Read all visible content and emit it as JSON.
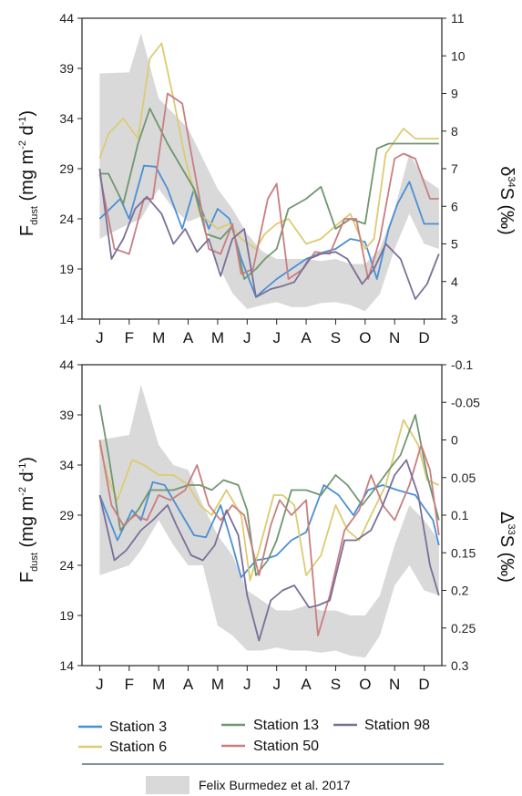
{
  "chart_data": [
    {
      "type": "line",
      "months": [
        "J",
        "F",
        "M",
        "A",
        "M",
        "J",
        "J",
        "A",
        "S",
        "O",
        "N",
        "D"
      ],
      "ylabel_left": {
        "main": "F",
        "sub": "dust",
        "rest": " (mg m",
        "sup1": "-2",
        "mid": " d",
        "sup2": "-1",
        "end": ")"
      },
      "ylabel_right": {
        "pre": "δ",
        "sup": "34",
        "main": "S (‰)"
      },
      "y_left_lim": [
        14,
        44
      ],
      "y_left_ticks": [
        "14",
        "19",
        "24",
        "29",
        "34",
        "39",
        "44"
      ],
      "y_right_lim": [
        3,
        11
      ],
      "y_right_ticks": [
        "3",
        "4",
        "5",
        "6",
        "7",
        "8",
        "9",
        "10",
        "11"
      ],
      "band": {
        "name": "Felix Burmedez et al. 2017",
        "x": [
          0,
          1,
          1.4,
          2,
          2.5,
          3,
          3.5,
          4,
          4.5,
          5,
          5.5,
          6,
          6.5,
          7,
          7.5,
          8,
          8.5,
          9,
          9.5,
          10,
          10.5,
          11,
          11.5
        ],
        "upper": [
          38.5,
          38.6,
          42.5,
          36,
          34.5,
          33,
          30,
          27,
          25,
          22.5,
          20.8,
          20,
          20,
          20,
          19.8,
          20,
          19.5,
          19.5,
          21,
          25,
          30.5,
          28,
          27
        ],
        "lower": [
          22,
          23.5,
          24,
          27,
          25,
          23.7,
          24.3,
          19.5,
          16.6,
          15,
          15.4,
          15.7,
          15.2,
          15.2,
          15.6,
          15.7,
          15.4,
          14.8,
          16.5,
          21,
          24.5,
          21.5,
          21
        ]
      },
      "series": [
        {
          "name": "Station 3",
          "color": "#4a8fd6",
          "x": [
            0,
            0.7,
            1,
            1.5,
            1.9,
            2.3,
            2.8,
            3.2,
            3.7,
            4,
            4.4,
            4.8,
            5.3,
            5.6,
            6,
            6.5,
            7,
            7.5,
            8,
            8.5,
            9,
            9.4,
            9.8,
            10.1,
            10.5,
            11,
            11.5
          ],
          "y": [
            24,
            26,
            24,
            29.3,
            29.2,
            27,
            23,
            27,
            23,
            25,
            24,
            20,
            16.2,
            17,
            18,
            19,
            20,
            20.6,
            21,
            22,
            21.7,
            18,
            23,
            25.5,
            27.7,
            23.5,
            23.5
          ]
        },
        {
          "name": "Station 6",
          "color": "#dccb72",
          "x": [
            0,
            0.3,
            0.8,
            1.3,
            1.7,
            2.1,
            2.5,
            2.9,
            3.4,
            4,
            4.4,
            4.8,
            5.3,
            5.6,
            6,
            6.4,
            7,
            7.5,
            8,
            8.5,
            9,
            9.3,
            9.7,
            10.3,
            10.7,
            11,
            11.5
          ],
          "y": [
            30,
            32.5,
            34,
            32,
            40,
            41.5,
            36,
            30,
            24.5,
            23,
            23.5,
            22,
            21,
            22.5,
            23.5,
            24,
            21.5,
            22,
            23.3,
            24.5,
            21,
            22,
            30.5,
            33,
            32,
            32,
            32
          ]
        },
        {
          "name": "Station 13",
          "color": "#6f9670",
          "x": [
            0,
            0.3,
            0.8,
            1.3,
            1.7,
            2.3,
            2.7,
            3.2,
            3.6,
            4.1,
            4.5,
            4.9,
            5.3,
            5.6,
            6,
            6.4,
            7,
            7.5,
            8,
            8.5,
            9,
            9.4,
            9.8,
            10.4,
            10.8,
            11.2,
            11.5
          ],
          "y": [
            28.5,
            28.5,
            25.5,
            31.5,
            35,
            31.5,
            29.5,
            27,
            22.5,
            22,
            23.3,
            18,
            19,
            20,
            21,
            25,
            26,
            27.2,
            23,
            24,
            23.5,
            31,
            31.5,
            31.5,
            31.5,
            31.5,
            31.5
          ]
        },
        {
          "name": "Station 50",
          "color": "#c97e80",
          "x": [
            0,
            0.5,
            1,
            1.5,
            1.8,
            2.3,
            2.8,
            3.2,
            3.7,
            4.1,
            4.5,
            4.8,
            5.2,
            5.7,
            6,
            6.4,
            6.9,
            7.3,
            7.8,
            8.3,
            8.7,
            9.1,
            9.5,
            10,
            10.3,
            10.7,
            11.2,
            11.5
          ],
          "y": [
            28.5,
            21,
            20.5,
            26,
            26,
            36.5,
            35.5,
            29,
            21,
            20.5,
            23.5,
            18.5,
            19,
            26,
            27.5,
            18,
            19,
            20.7,
            20.5,
            24,
            24,
            18,
            22,
            30,
            30.5,
            30,
            26,
            26
          ]
        },
        {
          "name": "Station 98",
          "color": "#7a6f97",
          "x": [
            0,
            0.4,
            0.8,
            1.2,
            1.6,
            2.1,
            2.5,
            2.9,
            3.3,
            3.7,
            4.1,
            4.5,
            4.9,
            5.3,
            5.8,
            6.2,
            6.6,
            7.1,
            7.5,
            8,
            8.4,
            8.9,
            9.3,
            9.7,
            10.2,
            10.7,
            11.1,
            11.5
          ],
          "y": [
            29,
            20,
            22,
            25,
            26.2,
            24.5,
            21.5,
            23,
            20.7,
            22,
            18.3,
            22,
            23,
            16.2,
            17,
            17.3,
            17.7,
            20,
            20.5,
            20.7,
            20,
            17.5,
            19,
            21.5,
            20,
            16,
            17.5,
            20.5
          ]
        }
      ]
    },
    {
      "type": "line",
      "months": [
        "J",
        "F",
        "M",
        "A",
        "M",
        "J",
        "J",
        "A",
        "S",
        "O",
        "N",
        "D"
      ],
      "ylabel_left": {
        "main": "F",
        "sub": "dust",
        "rest": " (mg m",
        "sup1": "-2",
        "mid": " d",
        "sup2": "-1",
        "end": ")"
      },
      "ylabel_right": {
        "pre": "Δ",
        "sup": "33",
        "main": "S (‰)"
      },
      "y_left_lim": [
        14,
        44
      ],
      "y_left_ticks": [
        "14",
        "19",
        "24",
        "29",
        "34",
        "39",
        "44"
      ],
      "y_right_lim": [
        0.3,
        -0.1
      ],
      "y_right_ticks": [
        "0.3",
        "0.25",
        "0.2",
        "0.15",
        "0.1",
        "0.05",
        "0",
        "-0.05",
        "-0.1"
      ],
      "band": {
        "name": "Felix Burmedez et al. 2017",
        "x": [
          0,
          1,
          1.4,
          2,
          2.5,
          3,
          3.5,
          4,
          4.5,
          5,
          5.5,
          6,
          6.5,
          7,
          7.5,
          8,
          8.5,
          9,
          9.5,
          10,
          10.5,
          11,
          11.5
        ],
        "upper": [
          36.5,
          37,
          42,
          36,
          34,
          33.5,
          30,
          27,
          25,
          21.5,
          20.5,
          19.5,
          19.5,
          20,
          19.5,
          19.5,
          19,
          19,
          21,
          26,
          30,
          28.5,
          26.5
        ],
        "lower": [
          23,
          24,
          25.5,
          28.5,
          26,
          24,
          24,
          18,
          17,
          15.5,
          15.5,
          15.8,
          15.5,
          15.5,
          15.3,
          15.5,
          15,
          14.8,
          17,
          22,
          24,
          21.5,
          21
        ]
      },
      "series": [
        {
          "name": "Station 3",
          "color": "#4a8fd6",
          "x": [
            0,
            0.6,
            1.1,
            1.4,
            1.8,
            2.2,
            2.7,
            3.2,
            3.6,
            4.1,
            4.5,
            4.8,
            5.3,
            5.7,
            6,
            6.5,
            7,
            7.6,
            8.1,
            8.6,
            9.1,
            9.6,
            10.1,
            10.7,
            11.3,
            11.5
          ],
          "y": [
            31,
            26.5,
            29.5,
            28.5,
            32.3,
            32,
            29.5,
            27,
            26.8,
            30,
            26,
            22.8,
            24.5,
            24.7,
            25,
            26.5,
            27.3,
            32,
            31,
            29,
            31.5,
            32,
            31.5,
            31,
            28.5,
            26
          ]
        },
        {
          "name": "Station 6",
          "color": "#dccb72",
          "x": [
            0,
            0.3,
            0.6,
            1.1,
            1.5,
            2,
            2.5,
            3,
            3.4,
            3.8,
            4.3,
            4.8,
            5.1,
            5.4,
            5.9,
            6.2,
            6.6,
            7,
            7.5,
            8,
            8.4,
            8.8,
            9.2,
            9.7,
            10.3,
            10.8,
            11.1,
            11.5
          ],
          "y": [
            36,
            32.5,
            30.5,
            34.5,
            34,
            33,
            33,
            32,
            30,
            29,
            31.5,
            29,
            22.5,
            25.5,
            31,
            31,
            30,
            23,
            25,
            30,
            27.5,
            26.5,
            29,
            32,
            38.5,
            36,
            32.5,
            32
          ]
        },
        {
          "name": "Station 13",
          "color": "#6f9670",
          "x": [
            0,
            0.3,
            0.7,
            1.3,
            1.7,
            2.1,
            2.5,
            3,
            3.4,
            3.8,
            4.2,
            4.7,
            5,
            5.3,
            5.7,
            6,
            6.5,
            7,
            7.5,
            8,
            8.4,
            8.9,
            9.3,
            9.8,
            10.2,
            10.7,
            11.1,
            11.5
          ],
          "y": [
            40,
            35,
            27.5,
            29.5,
            31.5,
            31.5,
            31.5,
            32,
            32,
            31.5,
            32.5,
            32,
            29.5,
            23,
            24.5,
            26.5,
            31.5,
            31.5,
            31,
            33,
            32,
            30,
            31.5,
            33.5,
            35,
            39,
            33,
            28.5
          ]
        },
        {
          "name": "Station 50",
          "color": "#c97e80",
          "x": [
            0,
            0.4,
            0.8,
            1.2,
            1.6,
            2,
            2.4,
            2.9,
            3.3,
            3.7,
            4.1,
            4.5,
            4.9,
            5.4,
            5.8,
            6.1,
            6.5,
            7,
            7.4,
            7.8,
            8.3,
            8.8,
            9.2,
            9.6,
            10,
            10.5,
            10.9,
            11.2,
            11.5
          ],
          "y": [
            36.5,
            30,
            28,
            29,
            28.5,
            31,
            30.5,
            31.5,
            34,
            30,
            28.5,
            30,
            29,
            23,
            28,
            30.5,
            29,
            30.5,
            17,
            21,
            27.5,
            29.5,
            33,
            30,
            28.5,
            32,
            36,
            33.5,
            27
          ]
        },
        {
          "name": "Station 98",
          "color": "#7a6f97",
          "x": [
            0,
            0.5,
            0.9,
            1.4,
            1.8,
            2.3,
            2.6,
            3.1,
            3.5,
            3.9,
            4.3,
            4.7,
            5,
            5.4,
            5.8,
            6.2,
            6.6,
            7.1,
            7.4,
            7.8,
            8.3,
            8.7,
            9.2,
            9.6,
            10,
            10.4,
            10.8,
            11.2,
            11.5
          ],
          "y": [
            31,
            24.5,
            25.5,
            27.5,
            28.5,
            30,
            28,
            25,
            24.5,
            26,
            29.5,
            27,
            21,
            16.5,
            20.5,
            21.5,
            22,
            19.8,
            20,
            20.5,
            26.5,
            26.5,
            27.5,
            30,
            33,
            34.5,
            31,
            24,
            21
          ]
        }
      ]
    }
  ],
  "legend": {
    "items": [
      {
        "label": "Station 3",
        "color": "#4a8fd6"
      },
      {
        "label": "Station 6",
        "color": "#dccb72"
      },
      {
        "label": "Station 13",
        "color": "#6f9670"
      },
      {
        "label": "Station 50",
        "color": "#c97e80"
      },
      {
        "label": "Station 98",
        "color": "#7a6f97"
      }
    ],
    "band_label": "Felix Burmedez et al. 2017",
    "band_color": "#d9d9d9"
  }
}
